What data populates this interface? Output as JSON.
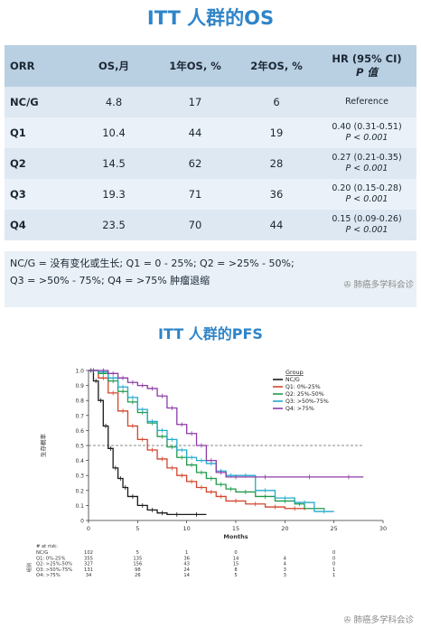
{
  "os_title": "ITT 人群的OS",
  "os_table": {
    "headers": [
      "ORR",
      "OS,月",
      "1年OS, %",
      "2年OS, %",
      "HR (95% CI)",
      "P 值"
    ],
    "rows": [
      {
        "group": "NC/G",
        "os": "4.8",
        "y1": "17",
        "y2": "6",
        "hr": "Reference",
        "p": ""
      },
      {
        "group": "Q1",
        "os": "10.4",
        "y1": "44",
        "y2": "19",
        "hr": "0.40 (0.31-0.51)",
        "p": "P < 0.001"
      },
      {
        "group": "Q2",
        "os": "14.5",
        "y1": "62",
        "y2": "28",
        "hr": "0.27 (0.21-0.35)",
        "p": "P < 0.001"
      },
      {
        "group": "Q3",
        "os": "19.3",
        "y1": "71",
        "y2": "36",
        "hr": "0.20 (0.15-0.28)",
        "p": "P < 0.001"
      },
      {
        "group": "Q4",
        "os": "23.5",
        "y1": "70",
        "y2": "44",
        "hr": "0.15 (0.09-0.26)",
        "p": "P < 0.001"
      }
    ]
  },
  "note_line1": "NC/G = 没有变化或生长; Q1 = 0 - 25%; Q2 = >25% - 50%;",
  "note_line2": "Q3 = >50% - 75%; Q4 = >75% 肿瘤退缩",
  "watermark": "肺癌多学科会诊",
  "pfs_title": "ITT 人群的PFS",
  "chart_data": {
    "type": "line",
    "ylabel": "生存概率",
    "xlabel": "Months",
    "xlim": [
      0,
      30
    ],
    "ylim": [
      0,
      1
    ],
    "x_ticks": [
      0,
      5,
      10,
      15,
      20,
      25,
      30
    ],
    "y_ticks": [
      "0",
      "0.1",
      "0.2",
      "0.3",
      "0.4",
      "0.5",
      "0.6",
      "0.7",
      "0.8",
      "0.9",
      "1.0"
    ],
    "y_tick_values": [
      0,
      0.1,
      0.2,
      0.3,
      0.4,
      0.5,
      0.6,
      0.7,
      0.8,
      0.9,
      1.0
    ],
    "median_line_y": 0.5,
    "legend_title": "Group",
    "legend_position": "top-right",
    "series": [
      {
        "name": "NC/G",
        "color": "#1a1a1a",
        "x": [
          0,
          0.5,
          1,
          1.5,
          2,
          2.5,
          3,
          3.5,
          4,
          5,
          6,
          7,
          8,
          10,
          12
        ],
        "y": [
          1,
          0.93,
          0.8,
          0.63,
          0.48,
          0.35,
          0.28,
          0.22,
          0.16,
          0.1,
          0.07,
          0.05,
          0.04,
          0.04,
          0.04
        ]
      },
      {
        "name": "Q1: 0%-25%",
        "color": "#d2452c",
        "x": [
          0,
          1,
          2,
          3,
          4,
          5,
          6,
          7,
          8,
          9,
          10,
          11,
          12,
          13,
          14,
          16,
          18,
          20,
          22
        ],
        "y": [
          1,
          0.95,
          0.85,
          0.73,
          0.63,
          0.54,
          0.47,
          0.41,
          0.35,
          0.3,
          0.26,
          0.22,
          0.19,
          0.16,
          0.13,
          0.11,
          0.09,
          0.08,
          0.07
        ]
      },
      {
        "name": "Q2: 25%-50%",
        "color": "#1e9a4a",
        "x": [
          0,
          1,
          2,
          3,
          4,
          5,
          6,
          7,
          8,
          9,
          10,
          11,
          12,
          13,
          14,
          15,
          17,
          19,
          21,
          22,
          24
        ],
        "y": [
          1,
          0.98,
          0.93,
          0.86,
          0.79,
          0.72,
          0.65,
          0.56,
          0.49,
          0.42,
          0.37,
          0.32,
          0.28,
          0.24,
          0.21,
          0.19,
          0.16,
          0.13,
          0.11,
          0.08,
          0.07
        ]
      },
      {
        "name": "Q3: >50%-75%",
        "color": "#22a9cc",
        "x": [
          0,
          1,
          2,
          3,
          4,
          5,
          6,
          7,
          8,
          9,
          10,
          11,
          12,
          13,
          14,
          15,
          17,
          19,
          21,
          23,
          25
        ],
        "y": [
          1,
          0.99,
          0.95,
          0.89,
          0.82,
          0.74,
          0.66,
          0.6,
          0.54,
          0.47,
          0.42,
          0.4,
          0.38,
          0.33,
          0.3,
          0.3,
          0.2,
          0.15,
          0.12,
          0.06,
          0.06
        ]
      },
      {
        "name": "Q4: >75%",
        "color": "#8e3ba6",
        "x": [
          0,
          1,
          2,
          3,
          4,
          5,
          6,
          7,
          8,
          9,
          10,
          11,
          12,
          13,
          14,
          16,
          20,
          25,
          28
        ],
        "y": [
          1,
          1,
          0.98,
          0.95,
          0.92,
          0.9,
          0.88,
          0.83,
          0.75,
          0.64,
          0.58,
          0.5,
          0.4,
          0.32,
          0.29,
          0.29,
          0.29,
          0.29,
          0.29
        ]
      }
    ],
    "at_risk": {
      "title": "# at risk:",
      "side_label": "组别",
      "times": [
        0,
        5,
        10,
        15,
        20,
        25
      ],
      "rows": [
        {
          "label": "NC/G",
          "counts": [
            "102",
            "5",
            "1",
            "0",
            "",
            "0"
          ]
        },
        {
          "label": "Q1: 0%-25%",
          "counts": [
            "355",
            "135",
            "36",
            "14",
            "4",
            "0"
          ]
        },
        {
          "label": "Q2: >25%-50%",
          "counts": [
            "327",
            "156",
            "43",
            "15",
            "4",
            "0"
          ]
        },
        {
          "label": "Q3: >50%-75%",
          "counts": [
            "131",
            "98",
            "24",
            "8",
            "3",
            "1"
          ]
        },
        {
          "label": "Q4: >75%",
          "counts": [
            "34",
            "26",
            "14",
            "5",
            "3",
            "1"
          ]
        }
      ]
    }
  }
}
